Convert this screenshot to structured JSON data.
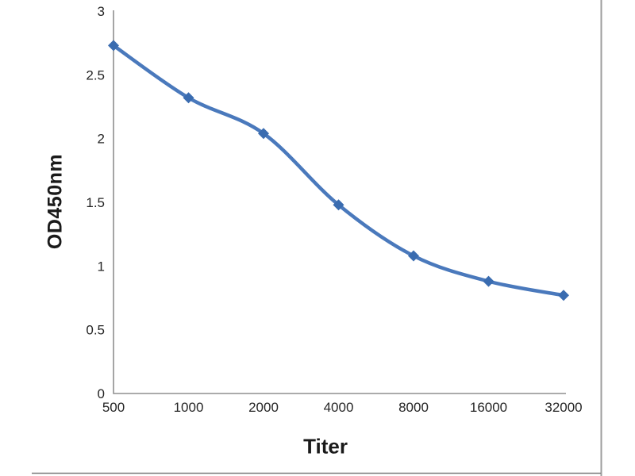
{
  "chart_data": {
    "type": "line",
    "title": "",
    "xlabel": "Titer",
    "ylabel": "OD450nm",
    "categories": [
      "500",
      "1000",
      "2000",
      "4000",
      "8000",
      "16000",
      "32000"
    ],
    "series": [
      {
        "name": "OD450nm",
        "values": [
          2.73,
          2.32,
          2.04,
          1.48,
          1.08,
          0.88,
          0.77
        ]
      }
    ],
    "y_tick_labels": [
      "0",
      "0.5",
      "1",
      "1.5",
      "2",
      "2.5",
      "3"
    ],
    "y_tick_values": [
      0,
      0.5,
      1,
      1.5,
      2,
      2.5,
      3
    ],
    "ylim": [
      0,
      3
    ],
    "grid": false,
    "legend": "none",
    "smooth": true,
    "marker": "diamond",
    "line_color": "#4A79BC",
    "marker_color": "#3A6CB0",
    "axis_color": "#8f8f8f",
    "tick_text_color": "#262626",
    "frame_right_color": "#9e9e9e",
    "frame_bottom_color": "#7a7a7a"
  }
}
